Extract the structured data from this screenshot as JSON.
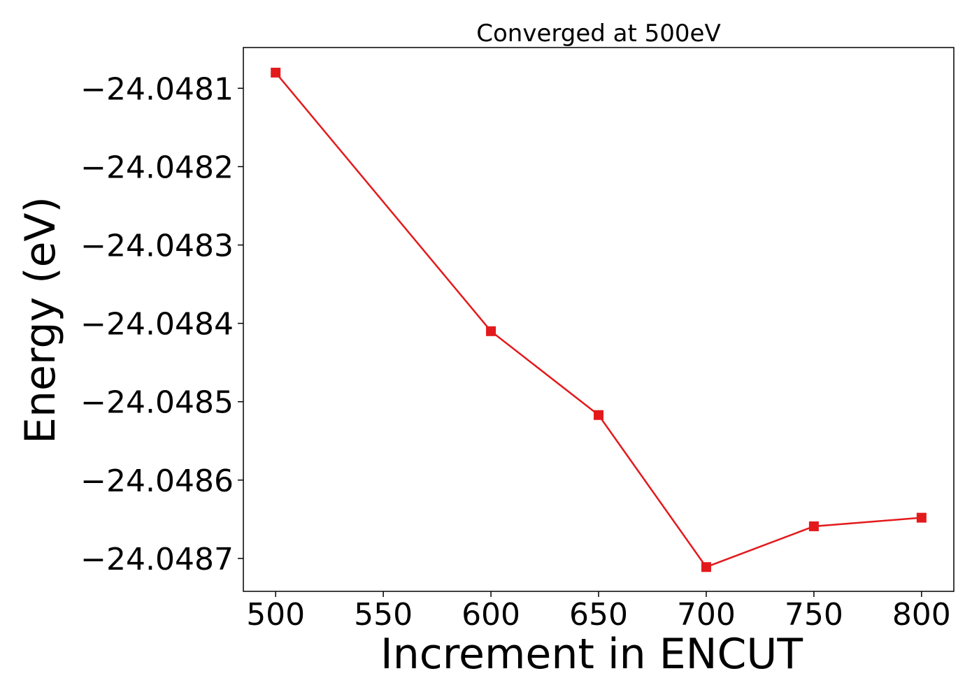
{
  "chart_data": {
    "type": "line",
    "title": "Converged at 500eV",
    "xlabel": "Increment in ENCUT",
    "ylabel": "Energy (eV)",
    "x": [
      500,
      600,
      650,
      700,
      750,
      800
    ],
    "series": [
      {
        "values": [
          -24.04808,
          -24.04841,
          -24.048517,
          -24.048711,
          -24.048659,
          -24.048648
        ],
        "color": "#e31a1c",
        "marker": "square"
      }
    ],
    "xticks": [
      500,
      550,
      600,
      650,
      700,
      750,
      800
    ],
    "xtick_labels": [
      "500",
      "550",
      "600",
      "650",
      "700",
      "750",
      "800"
    ],
    "yticks": [
      -24.0481,
      -24.0482,
      -24.0483,
      -24.0484,
      -24.0485,
      -24.0486,
      -24.0487
    ],
    "ytick_labels": [
      "−24.0481",
      "−24.0482",
      "−24.0483",
      "−24.0484",
      "−24.0485",
      "−24.0486",
      "−24.0487"
    ],
    "xlim": [
      485,
      815
    ],
    "ylim": [
      -24.048742,
      -24.048048
    ],
    "grid": false
  }
}
